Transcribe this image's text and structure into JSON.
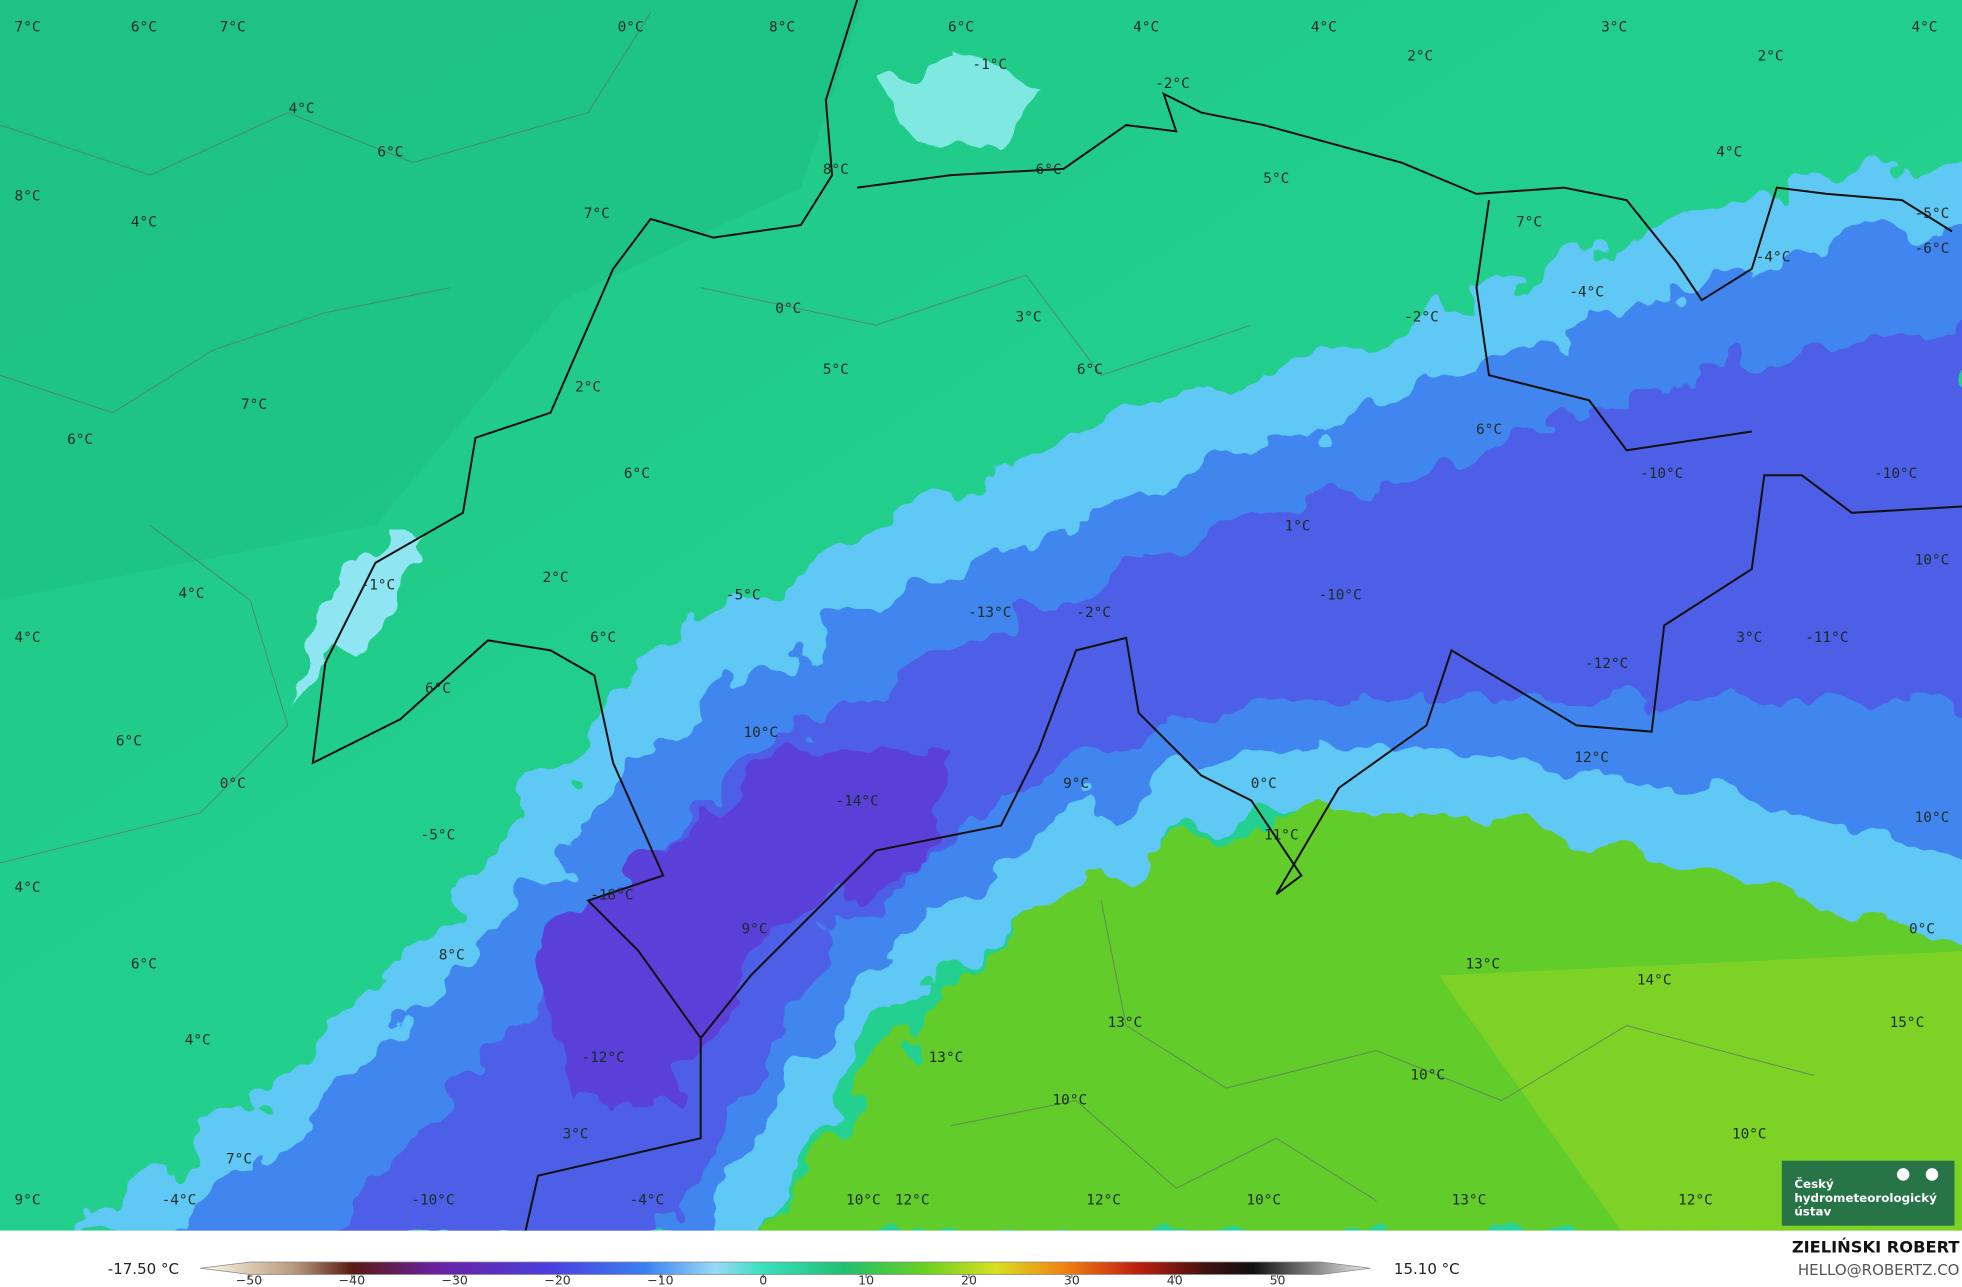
{
  "map": {
    "labels": [
      "7°C",
      "6°C",
      "7°C",
      "0°C",
      "8°C",
      "6°C",
      "4°C",
      "4°C",
      "3°C",
      "4°C",
      "2°C",
      "2°C",
      "-1°C",
      "-2°C",
      "4°C",
      "6°C",
      "4°C",
      "8°C",
      "6°C",
      "5°C",
      "8°C",
      "7°C",
      "4°C",
      "-5°C",
      "7°C",
      "-4°C",
      "-6°C",
      "-4°C",
      "0°C",
      "3°C",
      "-2°C",
      "5°C",
      "6°C",
      "2°C",
      "7°C",
      "6°C",
      "6°C",
      "6°C",
      "-10°C",
      "-10°C",
      "1°C",
      "10°C",
      "-1°C",
      "4°C",
      "2°C",
      "-10°C",
      "-5°C",
      "-13°C",
      "-2°C",
      "4°C",
      "6°C",
      "3°C",
      "-11°C",
      "-12°C",
      "6°C",
      "10°C",
      "6°C",
      "12°C",
      "0°C",
      "9°C",
      "0°C",
      "-14°C",
      "10°C",
      "-5°C",
      "11°C",
      "4°C",
      "-18°C",
      "9°C",
      "0°C",
      "8°C",
      "6°C",
      "13°C",
      "14°C",
      "15°C",
      "13°C",
      "4°C",
      "-12°C",
      "13°C",
      "10°C",
      "10°C",
      "3°C",
      "10°C",
      "7°C",
      "9°C",
      "-4°C",
      "-10°C",
      "-4°C",
      "10°C",
      "12°C",
      "12°C",
      "10°C",
      "13°C",
      "12°C"
    ]
  },
  "colorbar": {
    "min_label": "-17.50 °C",
    "max_label": "15.10 °C",
    "ticks": [
      {
        "value": -50,
        "label": "−50"
      },
      {
        "value": -40,
        "label": "−40"
      },
      {
        "value": -30,
        "label": "−30"
      },
      {
        "value": -20,
        "label": "−20"
      },
      {
        "value": -10,
        "label": "−10"
      },
      0,
      10,
      20,
      30,
      40,
      50
    ]
  },
  "logo": {
    "lines": [
      "Český",
      "hydrometeorologický",
      "ústav"
    ]
  },
  "credit": {
    "author": "ZIELIŃSKI ROBERT",
    "email": "HELLO@ROBERTZ.CO"
  }
}
